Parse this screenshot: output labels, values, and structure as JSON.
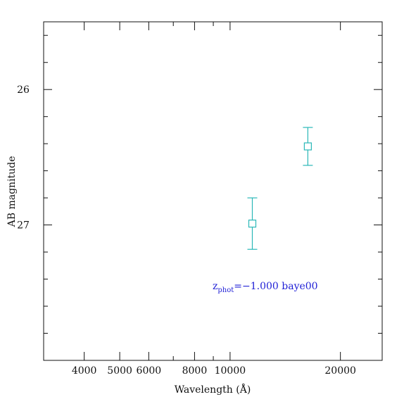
{
  "chart_data": {
    "type": "scatter",
    "title": "",
    "xlabel": "Wavelength (Å)",
    "ylabel": "AB magnitude",
    "x_scale": "log",
    "y_inverted": true,
    "xlim": [
      3100,
      26000
    ],
    "ylim": [
      28.0,
      25.5
    ],
    "x_ticks_labeled": [
      "4000",
      "5000",
      "6000",
      "8000",
      "10000",
      "20000"
    ],
    "y_ticks_labeled": [
      "26",
      "27"
    ],
    "grid": false,
    "colors": {
      "points": "#2bb8b8",
      "annotation": "#1f1fd6",
      "axes": "#111111"
    },
    "series": [
      {
        "marker": "open-square",
        "points": [
          {
            "x": 11500,
            "y": 26.99,
            "yerr": 0.19
          },
          {
            "x": 16300,
            "y": 26.42,
            "yerr": 0.14
          }
        ]
      }
    ],
    "annotation": {
      "prefix": "z",
      "subscript": "phot",
      "text": "=−1.000 baye00"
    }
  }
}
